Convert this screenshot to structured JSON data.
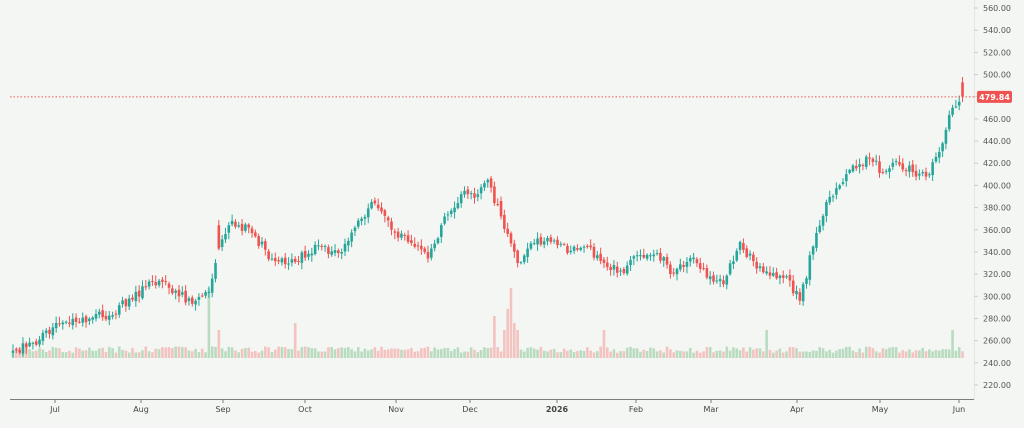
{
  "chart_data": {
    "type": "candlestick",
    "ylim": [
      220,
      560
    ],
    "y_ticks": [
      "220.00",
      "240.00",
      "260.00",
      "280.00",
      "300.00",
      "320.00",
      "340.00",
      "360.00",
      "380.00",
      "400.00",
      "420.00",
      "440.00",
      "460.00",
      "480.00",
      "500.00",
      "520.00",
      "540.00",
      "560.00"
    ],
    "x_ticks": [
      "Jul",
      "Aug",
      "Sep",
      "Oct",
      "Nov",
      "Dec",
      "2026",
      "Feb",
      "Mar",
      "Apr",
      "May",
      "Jun"
    ],
    "last_price_label": "479.84",
    "last_price": 479.84,
    "grid": false,
    "colors": {
      "up": "#26a69a",
      "down": "#ef5350",
      "vol_up": "#b9dcc1",
      "vol_down": "#f4c3c0",
      "price_line": "#ef5350"
    },
    "close_anchors": [
      [
        0,
        251
      ],
      [
        6,
        258
      ],
      [
        12,
        272
      ],
      [
        20,
        277
      ],
      [
        25,
        284
      ],
      [
        30,
        283
      ],
      [
        35,
        298
      ],
      [
        40,
        308
      ],
      [
        45,
        313
      ],
      [
        50,
        300
      ],
      [
        55,
        296
      ],
      [
        59,
        304
      ],
      [
        62,
        343
      ],
      [
        66,
        368
      ],
      [
        72,
        357
      ],
      [
        78,
        334
      ],
      [
        85,
        331
      ],
      [
        92,
        346
      ],
      [
        98,
        339
      ],
      [
        103,
        362
      ],
      [
        108,
        385
      ],
      [
        114,
        360
      ],
      [
        120,
        348
      ],
      [
        125,
        334
      ],
      [
        130,
        372
      ],
      [
        136,
        395
      ],
      [
        140,
        392
      ],
      [
        143,
        405
      ],
      [
        147,
        372
      ],
      [
        152,
        330
      ],
      [
        157,
        348
      ],
      [
        162,
        349
      ],
      [
        168,
        341
      ],
      [
        173,
        345
      ],
      [
        178,
        330
      ],
      [
        184,
        321
      ],
      [
        188,
        337
      ],
      [
        194,
        339
      ],
      [
        199,
        321
      ],
      [
        205,
        335
      ],
      [
        210,
        318
      ],
      [
        214,
        311
      ],
      [
        219,
        349
      ],
      [
        224,
        325
      ],
      [
        229,
        321
      ],
      [
        233,
        318
      ],
      [
        237,
        296
      ],
      [
        241,
        345
      ],
      [
        245,
        385
      ],
      [
        249,
        400
      ],
      [
        253,
        418
      ],
      [
        258,
        424
      ],
      [
        262,
        412
      ],
      [
        266,
        422
      ],
      [
        271,
        412
      ],
      [
        275,
        408
      ],
      [
        280,
        438
      ],
      [
        283,
        470
      ],
      [
        286,
        480
      ]
    ],
    "volume_spikes": [
      [
        59,
        10
      ],
      [
        62,
        4
      ],
      [
        85,
        5
      ],
      [
        145,
        6
      ],
      [
        148,
        4
      ],
      [
        149,
        7
      ],
      [
        150,
        14
      ],
      [
        151,
        5
      ],
      [
        152,
        4
      ],
      [
        178,
        4
      ],
      [
        227,
        4
      ],
      [
        283,
        4
      ]
    ]
  }
}
